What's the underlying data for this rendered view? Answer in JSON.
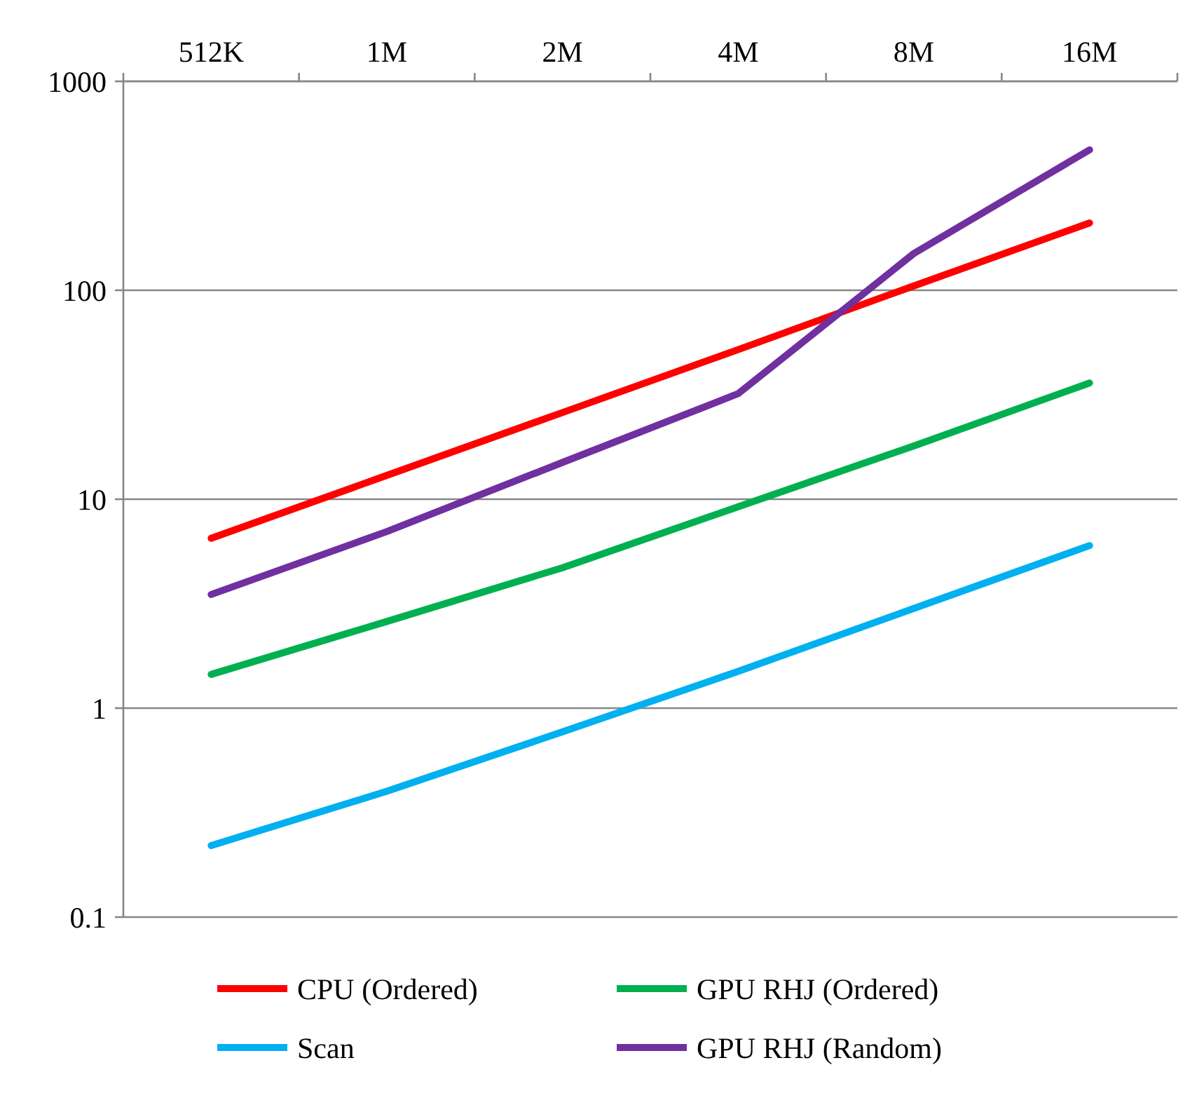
{
  "chart_data": {
    "type": "line",
    "categories": [
      "512K",
      "1M",
      "2M",
      "4M",
      "8M",
      "16M"
    ],
    "series": [
      {
        "name": "CPU (Ordered)",
        "color": "#ff0000",
        "values": [
          6.5,
          13,
          26,
          52,
          105,
          210
        ]
      },
      {
        "name": "GPU RHJ (Ordered)",
        "color": "#00b050",
        "values": [
          1.45,
          2.6,
          4.7,
          9.2,
          18,
          36
        ]
      },
      {
        "name": "Scan",
        "color": "#00b0f0",
        "values": [
          0.22,
          0.4,
          0.77,
          1.5,
          3,
          6
        ]
      },
      {
        "name": "GPU RHJ (Random)",
        "color": "#7030a0",
        "values": [
          3.5,
          7,
          15,
          32,
          150,
          470
        ]
      }
    ],
    "log": true,
    "ylim": [
      0.1,
      1000
    ],
    "yticks": [
      0.1,
      1,
      10,
      100,
      1000
    ],
    "grid": "y",
    "legend": "bottom",
    "marker": "none",
    "line_style": "solid"
  }
}
